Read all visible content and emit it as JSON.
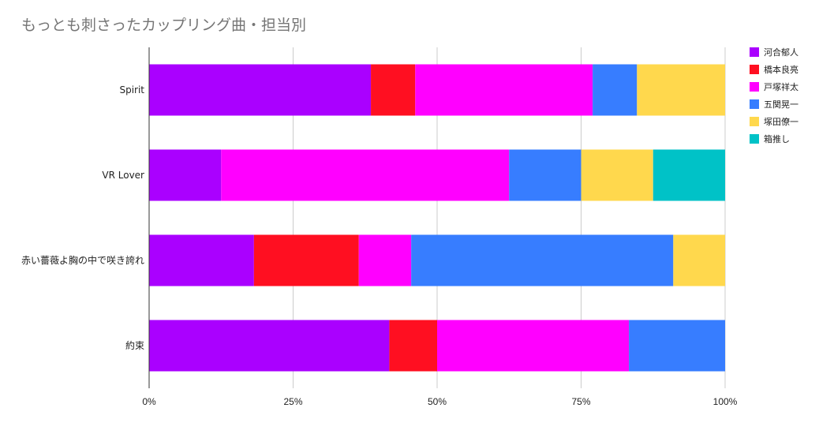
{
  "chart_data": {
    "type": "bar",
    "orientation": "horizontal",
    "stacked": "percent",
    "title": "もっとも刺さったカップリング曲・担当別",
    "categories": [
      "Spirit",
      "VR Lover",
      "赤い薔薇よ胸の中で咲き誇れ",
      "約束"
    ],
    "x_ticks": [
      "0%",
      "25%",
      "50%",
      "75%",
      "100%"
    ],
    "xlim": [
      0,
      100
    ],
    "grid": true,
    "legend_position": "right",
    "series": [
      {
        "name": "河合郁人",
        "color": "#aa00ff",
        "values": [
          38.5,
          12.5,
          18.2,
          41.7
        ]
      },
      {
        "name": "橋本良亮",
        "color": "#ff0f21",
        "values": [
          7.7,
          0,
          18.2,
          8.3
        ]
      },
      {
        "name": "戸塚祥太",
        "color": "#ff00ff",
        "values": [
          30.8,
          50.0,
          9.1,
          33.3
        ]
      },
      {
        "name": "五関晃一",
        "color": "#377dff",
        "values": [
          7.7,
          12.5,
          45.5,
          16.7
        ]
      },
      {
        "name": "塚田僚一",
        "color": "#ffd84d",
        "values": [
          15.3,
          12.5,
          9.0,
          0
        ]
      },
      {
        "name": "箱推し",
        "color": "#00c2c7",
        "values": [
          0,
          12.5,
          0,
          0
        ]
      }
    ]
  }
}
